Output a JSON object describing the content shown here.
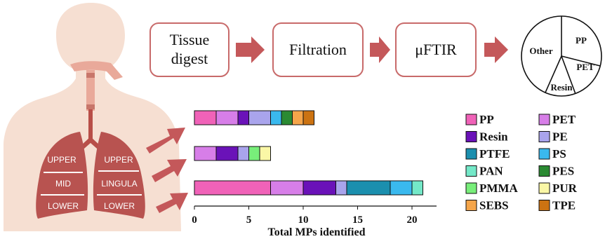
{
  "workflow": {
    "steps": [
      {
        "lines": [
          "Tissue",
          "digest"
        ]
      },
      {
        "lines": [
          "Filtration"
        ]
      },
      {
        "lines": [
          "μFTIR"
        ]
      }
    ]
  },
  "pie": {
    "labels": [
      "PP",
      "PET",
      "Resin",
      "Other"
    ]
  },
  "lungs": {
    "right": [
      "UPPER",
      "MID",
      "LOWER"
    ],
    "left": [
      "UPPER",
      "LINGULA",
      "LOWER"
    ]
  },
  "chart_data": {
    "type": "bar",
    "orientation": "horizontal",
    "stacked": true,
    "xlabel": "Total MPs identified",
    "xticks": [
      0,
      5,
      10,
      15,
      20
    ],
    "xlim": [
      0,
      22
    ],
    "rows": [
      {
        "segments": [
          [
            "PP",
            2
          ],
          [
            "PET",
            2
          ],
          [
            "Resin",
            1
          ],
          [
            "PE",
            2
          ],
          [
            "PS",
            1
          ],
          [
            "PES",
            1
          ],
          [
            "SEBS",
            1
          ],
          [
            "TPE",
            1
          ]
        ]
      },
      {
        "segments": [
          [
            "PET",
            2
          ],
          [
            "Resin",
            2
          ],
          [
            "PE",
            1
          ],
          [
            "PMMA",
            1
          ],
          [
            "PUR",
            1
          ]
        ]
      },
      {
        "segments": [
          [
            "PP",
            7
          ],
          [
            "PET",
            3
          ],
          [
            "Resin",
            3
          ],
          [
            "PE",
            1
          ],
          [
            "PTFE",
            4
          ],
          [
            "PS",
            2
          ],
          [
            "PAN",
            1
          ]
        ]
      }
    ]
  },
  "legend": [
    {
      "label": "PP",
      "color": "#f062b8"
    },
    {
      "label": "PET",
      "color": "#d77ee8"
    },
    {
      "label": "Resin",
      "color": "#6a12b8"
    },
    {
      "label": "PE",
      "color": "#a9a4ec"
    },
    {
      "label": "PTFE",
      "color": "#1b8fae"
    },
    {
      "label": "PS",
      "color": "#3ab9ee"
    },
    {
      "label": "PAN",
      "color": "#74e8c8"
    },
    {
      "label": "PES",
      "color": "#2b8a33"
    },
    {
      "label": "PMMA",
      "color": "#78ee7a"
    },
    {
      "label": "PUR",
      "color": "#faf7a6"
    },
    {
      "label": "SEBS",
      "color": "#f5a54a"
    },
    {
      "label": "TPE",
      "color": "#cc7312"
    }
  ]
}
